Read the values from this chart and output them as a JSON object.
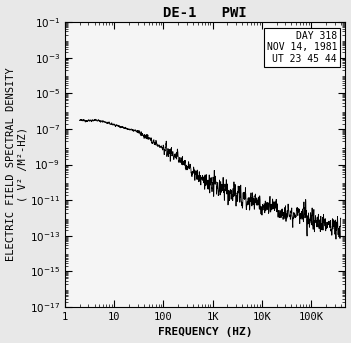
{
  "title": "DE-1   PWI",
  "xlabel": "FREQUENCY (HZ)",
  "ylabel": "ELECTRIC FIELD SPECTRAL DENSITY\n( V² /M²-HZ)",
  "annotation": "DAY 318\nNOV 14, 1981\nUT 23 45 44",
  "xlim": [
    1,
    500000
  ],
  "ylim": [
    1e-17,
    0.1
  ],
  "xtick_labels": [
    "1",
    "10",
    "100",
    "1K",
    "10K",
    "100K"
  ],
  "xtick_values": [
    1,
    10,
    100,
    1000,
    10000,
    100000
  ],
  "ytick_values": [
    -1,
    -3,
    -5,
    -7,
    -9,
    -11,
    -13,
    -15,
    -17
  ],
  "background_color": "#f0f0f0",
  "line_color": "#000000",
  "smooth_line_color": "#666666",
  "title_fontsize": 10,
  "label_fontsize": 8,
  "tick_fontsize": 7.5,
  "seed": 12345
}
